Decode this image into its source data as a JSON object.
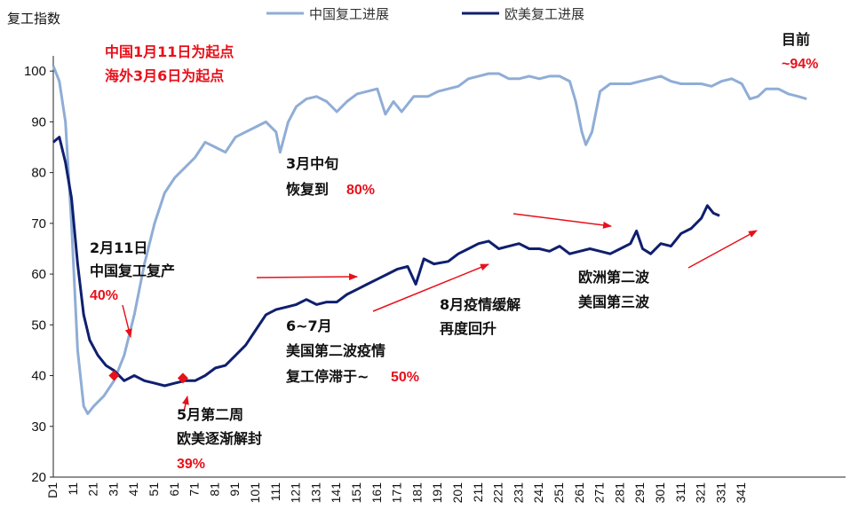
{
  "chart_data": {
    "type": "line",
    "ylabel": "复工指数",
    "ylim": [
      20,
      103
    ],
    "yticks": [
      20,
      30,
      40,
      50,
      60,
      70,
      80,
      90,
      100
    ],
    "xlim": [
      0,
      40
    ],
    "xticks": [
      {
        "label": "D1",
        "x": 0
      },
      {
        "label": "11",
        "x": 1
      },
      {
        "label": "21",
        "x": 2
      },
      {
        "label": "31",
        "x": 3
      },
      {
        "label": "41",
        "x": 4
      },
      {
        "label": "51",
        "x": 5
      },
      {
        "label": "61",
        "x": 6
      },
      {
        "label": "71",
        "x": 7
      },
      {
        "label": "81",
        "x": 8
      },
      {
        "label": "91",
        "x": 9
      },
      {
        "label": "101",
        "x": 10
      },
      {
        "label": "111",
        "x": 11
      },
      {
        "label": "121",
        "x": 12
      },
      {
        "label": "131",
        "x": 13
      },
      {
        "label": "141",
        "x": 14
      },
      {
        "label": "151",
        "x": 15
      },
      {
        "label": "161",
        "x": 16
      },
      {
        "label": "171",
        "x": 17
      },
      {
        "label": "181",
        "x": 18
      },
      {
        "label": "191",
        "x": 19
      },
      {
        "label": "201",
        "x": 20
      },
      {
        "label": "211",
        "x": 21
      },
      {
        "label": "221",
        "x": 22
      },
      {
        "label": "231",
        "x": 23
      },
      {
        "label": "241",
        "x": 24
      },
      {
        "label": "251",
        "x": 25
      },
      {
        "label": "261",
        "x": 26
      },
      {
        "label": "271",
        "x": 27
      },
      {
        "label": "281",
        "x": 28
      },
      {
        "label": "291",
        "x": 29
      },
      {
        "label": "301",
        "x": 30
      },
      {
        "label": "311",
        "x": 31
      },
      {
        "label": "321",
        "x": 32
      },
      {
        "label": "331",
        "x": 33
      },
      {
        "label": "341",
        "x": 34
      }
    ],
    "legend_position": "top-center",
    "grid": false,
    "series": [
      {
        "name": "中国复工进展",
        "color": "#8fadd6",
        "points": [
          [
            0,
            101
          ],
          [
            0.3,
            98
          ],
          [
            0.6,
            90
          ],
          [
            0.9,
            70
          ],
          [
            1.2,
            45
          ],
          [
            1.5,
            34
          ],
          [
            1.7,
            32.5
          ],
          [
            2.0,
            34
          ],
          [
            2.5,
            36
          ],
          [
            3.0,
            39
          ],
          [
            3.5,
            44
          ],
          [
            4.0,
            52
          ],
          [
            4.5,
            62
          ],
          [
            5.0,
            70
          ],
          [
            5.5,
            76
          ],
          [
            6.0,
            79
          ],
          [
            6.5,
            81
          ],
          [
            7.0,
            83
          ],
          [
            7.5,
            86
          ],
          [
            8.0,
            85
          ],
          [
            8.5,
            84
          ],
          [
            9.0,
            87
          ],
          [
            9.5,
            88
          ],
          [
            10.0,
            89
          ],
          [
            10.5,
            90
          ],
          [
            11.0,
            88
          ],
          [
            11.2,
            84
          ],
          [
            11.6,
            90
          ],
          [
            12.0,
            93
          ],
          [
            12.5,
            94.5
          ],
          [
            13.0,
            95
          ],
          [
            13.5,
            94
          ],
          [
            14.0,
            92
          ],
          [
            14.5,
            94
          ],
          [
            15.0,
            95.5
          ],
          [
            15.5,
            96
          ],
          [
            16.0,
            96.5
          ],
          [
            16.4,
            91.5
          ],
          [
            16.8,
            94
          ],
          [
            17.2,
            92
          ],
          [
            17.8,
            95
          ],
          [
            18.5,
            95
          ],
          [
            19.0,
            96
          ],
          [
            19.5,
            96.5
          ],
          [
            20.0,
            97
          ],
          [
            20.5,
            98.5
          ],
          [
            21.0,
            99
          ],
          [
            21.5,
            99.5
          ],
          [
            22.0,
            99.5
          ],
          [
            22.5,
            98.5
          ],
          [
            23.0,
            98.5
          ],
          [
            23.5,
            99
          ],
          [
            24.0,
            98.5
          ],
          [
            24.5,
            99
          ],
          [
            25.0,
            99
          ],
          [
            25.5,
            98
          ],
          [
            25.8,
            94
          ],
          [
            26.1,
            88
          ],
          [
            26.3,
            85.5
          ],
          [
            26.6,
            88
          ],
          [
            27.0,
            96
          ],
          [
            27.5,
            97.5
          ],
          [
            28.0,
            97.5
          ],
          [
            28.5,
            97.5
          ],
          [
            29.0,
            98
          ],
          [
            29.5,
            98.5
          ],
          [
            30.0,
            99
          ],
          [
            30.5,
            98
          ],
          [
            31.0,
            97.5
          ],
          [
            31.5,
            97.5
          ],
          [
            32.0,
            97.5
          ],
          [
            32.5,
            97
          ],
          [
            33.0,
            98
          ],
          [
            33.5,
            98.5
          ],
          [
            34.0,
            97.5
          ],
          [
            34.4,
            94.5
          ],
          [
            34.8,
            95
          ],
          [
            35.2,
            96.5
          ],
          [
            35.8,
            96.5
          ],
          [
            36.3,
            95.5
          ],
          [
            36.8,
            95
          ],
          [
            37.2,
            94.5
          ]
        ]
      },
      {
        "name": "欧美复工进展",
        "color": "#0f1f6e",
        "points": [
          [
            0,
            86
          ],
          [
            0.3,
            87
          ],
          [
            0.6,
            82
          ],
          [
            0.9,
            75
          ],
          [
            1.2,
            62
          ],
          [
            1.5,
            52
          ],
          [
            1.8,
            47
          ],
          [
            2.2,
            44
          ],
          [
            2.6,
            42
          ],
          [
            3.0,
            41
          ],
          [
            3.5,
            39
          ],
          [
            4.0,
            40
          ],
          [
            4.5,
            39
          ],
          [
            5.0,
            38.5
          ],
          [
            5.5,
            38
          ],
          [
            6.0,
            38.5
          ],
          [
            6.5,
            39
          ],
          [
            7.0,
            39
          ],
          [
            7.5,
            40
          ],
          [
            8.0,
            41.5
          ],
          [
            8.5,
            42
          ],
          [
            9.0,
            44
          ],
          [
            9.5,
            46
          ],
          [
            10.0,
            49
          ],
          [
            10.5,
            52
          ],
          [
            11.0,
            53
          ],
          [
            11.5,
            53.5
          ],
          [
            12.0,
            54
          ],
          [
            12.5,
            55
          ],
          [
            13.0,
            54
          ],
          [
            13.5,
            54.5
          ],
          [
            14.0,
            54.5
          ],
          [
            14.5,
            56
          ],
          [
            15.0,
            57
          ],
          [
            15.5,
            58
          ],
          [
            16.0,
            59
          ],
          [
            16.5,
            60
          ],
          [
            17.0,
            61
          ],
          [
            17.5,
            61.5
          ],
          [
            17.9,
            58
          ],
          [
            18.3,
            63
          ],
          [
            18.8,
            62
          ],
          [
            19.5,
            62.5
          ],
          [
            20.0,
            64
          ],
          [
            20.5,
            65
          ],
          [
            21.0,
            66
          ],
          [
            21.5,
            66.5
          ],
          [
            22.0,
            65
          ],
          [
            22.5,
            65.5
          ],
          [
            23.0,
            66
          ],
          [
            23.5,
            65
          ],
          [
            24.0,
            65
          ],
          [
            24.5,
            64.5
          ],
          [
            25.0,
            65.5
          ],
          [
            25.5,
            64
          ],
          [
            26.0,
            64.5
          ],
          [
            26.5,
            65
          ],
          [
            27.0,
            64.5
          ],
          [
            27.5,
            64
          ],
          [
            28.0,
            65
          ],
          [
            28.5,
            66
          ],
          [
            28.8,
            68.5
          ],
          [
            29.1,
            65
          ],
          [
            29.5,
            64
          ],
          [
            30.0,
            66
          ],
          [
            30.5,
            65.5
          ],
          [
            31.0,
            68
          ],
          [
            31.5,
            69
          ],
          [
            32.0,
            71
          ],
          [
            32.3,
            73.5
          ],
          [
            32.6,
            72
          ],
          [
            32.9,
            71.5
          ]
        ]
      }
    ],
    "markers": [
      {
        "x": 3.0,
        "y": 40,
        "color": "#e8101a"
      },
      {
        "x": 6.4,
        "y": 39.5,
        "color": "#e8101a"
      }
    ],
    "annotations": [
      {
        "lines": [
          "中国1月11日为起点",
          "海外3月6日为起点"
        ],
        "color": "red"
      },
      {
        "lines": [
          "2月11日",
          "中国复工复产"
        ],
        "highlight": "40%"
      },
      {
        "lines": [
          "3月中旬",
          "恢复到"
        ],
        "highlight": "80%"
      },
      {
        "lines": [
          "5月第二周",
          "欧美逐渐解封"
        ],
        "highlight": "39%"
      },
      {
        "lines": [
          "6~7月",
          "美国第二波疫情",
          "复工停滞于~"
        ],
        "highlight": "50%"
      },
      {
        "lines": [
          "8月疫情缓解",
          "再度回升"
        ]
      },
      {
        "lines": [
          "欧洲第二波",
          "美国第三波"
        ]
      },
      {
        "lines": [
          "目前"
        ],
        "highlight": "~94%"
      }
    ]
  }
}
